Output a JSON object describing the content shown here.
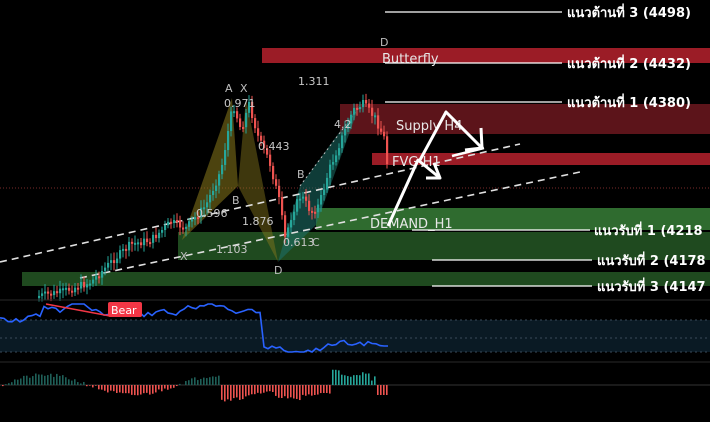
{
  "colors": {
    "background": "#000000",
    "resistance_zone": "#9b1c26",
    "supply_zone": "#5c141a",
    "demand_zone": "#2f6b2f",
    "support_zone": "#1f4a1f",
    "bull_candle": "#26a69a",
    "bear_candle": "#ef5350",
    "rsi_line": "#2962ff",
    "bear_tag": "#f23645",
    "pattern_xab": "#8a7a1c",
    "pattern_bcd": "#1c6e66"
  },
  "chart_data": {
    "type": "candlestick",
    "title": "",
    "price_levels": {
      "resistance": [
        {
          "label": "แนวต้านที่ 3 (4498)",
          "price": 4498
        },
        {
          "label": "แนวต้านที่ 2 (4432)",
          "price": 4432
        },
        {
          "label": "แนวต้านที่ 1 (4380)",
          "price": 4380
        }
      ],
      "support": [
        {
          "label": "แนวรับที่ 1 (4218",
          "price": 4218
        },
        {
          "label": "แนวรับที่ 2 (4178",
          "price": 4178
        },
        {
          "label": "แนวรับที่ 3 (4147",
          "price": 4147
        }
      ]
    },
    "zones": [
      {
        "label": "Butterfly",
        "kind": "resistance",
        "from": 4425,
        "to": 4440
      },
      {
        "label": "Supply H4",
        "kind": "supply",
        "from": 4345,
        "to": 4380
      },
      {
        "label": "FVG H1",
        "kind": "resistance",
        "from": 4315,
        "to": 4327
      },
      {
        "label": "DEMAND_H1",
        "kind": "demand",
        "from": 4210,
        "to": 4228
      },
      {
        "label": "",
        "kind": "support",
        "from": 4182,
        "to": 4210
      },
      {
        "label": "",
        "kind": "support",
        "from": 4143,
        "to": 4158
      }
    ],
    "harmonic": {
      "name": "Butterfly",
      "points": [
        "X",
        "A",
        "B",
        "C",
        "D"
      ],
      "ratios": [
        "0.971",
        "0.443",
        "1.311",
        "0.596",
        "1.876",
        "1.103",
        "0.613",
        "4.2"
      ]
    },
    "pattern_labels": {
      "A": "A",
      "X": "X",
      "B": "B",
      "C": "C",
      "D": "D",
      "B2": "B",
      "X2": "X",
      "D2": "D"
    },
    "indicator": {
      "tag": "Bear"
    }
  }
}
